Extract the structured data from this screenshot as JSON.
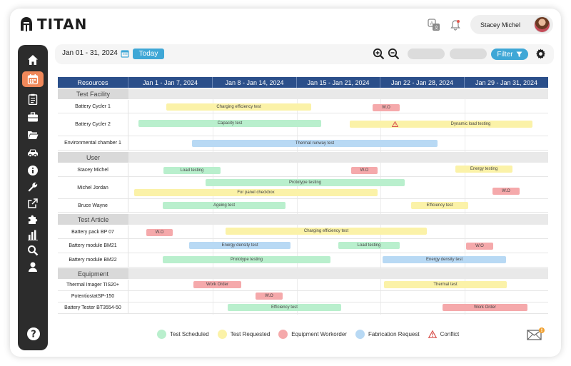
{
  "app": {
    "logo_text": "TITAN"
  },
  "header": {
    "user_name": "Stacey Michel"
  },
  "toolbar": {
    "date_range": "Jan 01 - 31, 2024",
    "today_label": "Today",
    "filter_label": "Filter"
  },
  "grid": {
    "resources_header": "Resources",
    "week_headers": [
      "Jan 1 - Jan 7, 2024",
      "Jan 8 - Jan 14, 2024",
      "Jan 15 - Jan 21, 2024",
      "Jan 22 - Jan 28, 2024",
      "Jan 29 - Jan 31, 2024"
    ],
    "groups": [
      {
        "name": "Test Facility",
        "rows": [
          "Battery Cycler 1",
          "Battery Cycler 2",
          "Environmental chamber 1"
        ]
      },
      {
        "name": "User",
        "rows": [
          "Stacey Michel",
          "Michel Jordan",
          "Bruce Wayne"
        ]
      },
      {
        "name": "Test Article",
        "rows": [
          "Battery pack BP 07",
          "Battery module BM21",
          "Battery module BM22"
        ]
      },
      {
        "name": "Equipment",
        "rows": [
          "Thermal Imager TIS20+",
          "PotentiostatSP-150",
          "Battery Tester BT3554-50"
        ]
      }
    ],
    "bars": {
      "fc_charging": "Charging efficiency test",
      "fc_wo": "W.O",
      "fc2_capacity": "Capacity test",
      "fc2_dynamic": "Dynamic load testing",
      "env_thermal": "Thermal runway test",
      "sm_load": "Load testing",
      "sm_wo": "W.O",
      "sm_energy": "Energy testing",
      "mj_prototype": "Prototype testing",
      "mj_panel": "For panel checkbox",
      "mj_wo": "W.O",
      "bw_ageing": "Ageing test",
      "bw_efficiency": "Efficiency test",
      "bp_wo": "W.O",
      "bp_charging": "Charging efficiency test",
      "bm21_energy": "Energy density test",
      "bm21_load": "Load testing",
      "bm21_wo": "W.O",
      "bm22_prototype": "Prototype testing",
      "bm22_energy": "Energy density test",
      "ti_work": "Work Order",
      "ti_thermal": "Thermal test",
      "ps_wo": "W.O",
      "bt_efficiency": "Efficiency test",
      "bt_work": "Work Order"
    }
  },
  "legend": {
    "scheduled": "Test Scheduled",
    "requested": "Test Requested",
    "workorder": "Equipment Workorder",
    "fabrication": "Fabrication Request",
    "conflict": "Conflict"
  },
  "colors": {
    "accent": "#3fa7d6",
    "header": "#2b4f8a",
    "sidebar": "#2c2c2c",
    "active_nav": "#f0885a",
    "scheduled": "#b9efcd",
    "requested": "#fbf2a8",
    "workorder": "#f5a9ab",
    "fabrication": "#b8d9f4"
  }
}
